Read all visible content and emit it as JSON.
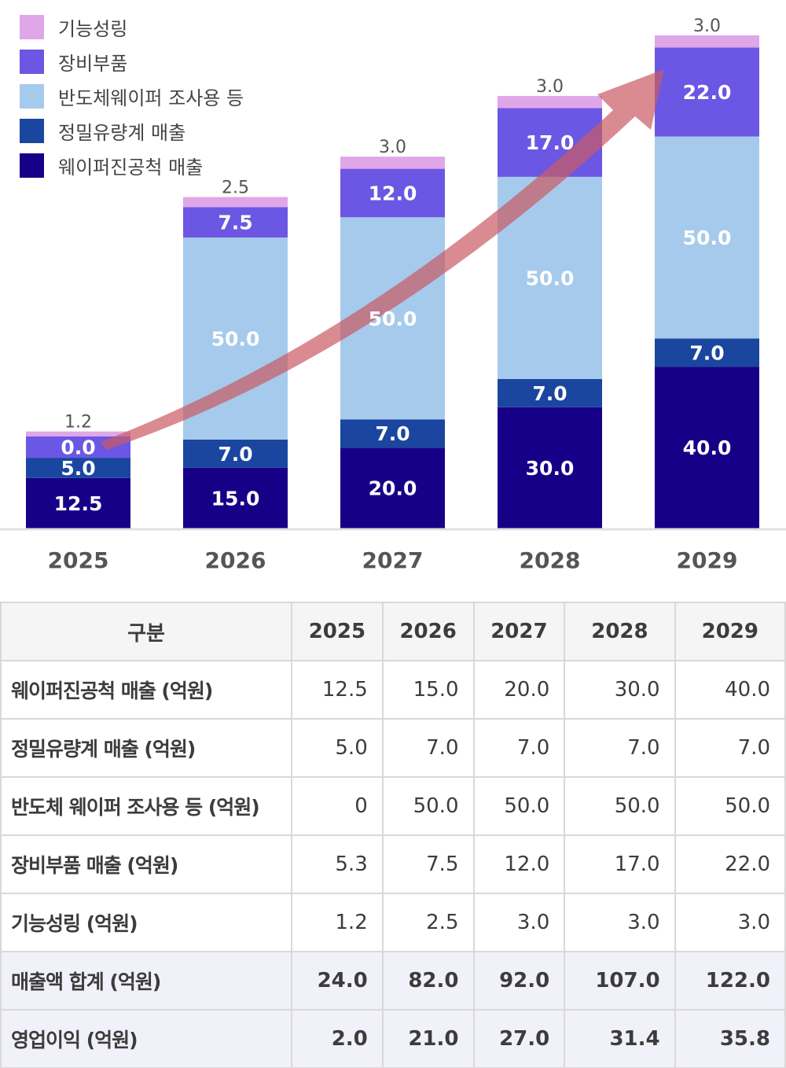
{
  "chart_data": {
    "type": "bar",
    "stacked": true,
    "categories": [
      "2025",
      "2026",
      "2027",
      "2028",
      "2029"
    ],
    "series": [
      {
        "name": "웨이퍼진공척 매출",
        "color": "#160087",
        "label_color": "#ffffff",
        "values": [
          12.5,
          15.0,
          20.0,
          30.0,
          40.0
        ],
        "labels": [
          "12.5",
          "15.0",
          "20.0",
          "30.0",
          "40.0"
        ]
      },
      {
        "name": "정밀유량계 매출",
        "color": "#1a46a0",
        "label_color": "#ffffff",
        "values": [
          5.0,
          7.0,
          7.0,
          7.0,
          7.0
        ],
        "labels": [
          "5.0",
          "7.0",
          "7.0",
          "7.0",
          "7.0"
        ]
      },
      {
        "name": "반도체웨이퍼 조사용 등",
        "color": "#a6caeb",
        "label_color": "#ffffff",
        "values": [
          0,
          50.0,
          50.0,
          50.0,
          50.0
        ],
        "labels": [
          "0.0",
          "50.0",
          "50.0",
          "50.0",
          "50.0"
        ]
      },
      {
        "name": "장비부품",
        "color": "#6b57e3",
        "label_color": "#ffffff",
        "values": [
          5.3,
          7.5,
          12.0,
          17.0,
          22.0
        ],
        "labels": [
          "",
          "7.5",
          "12.0",
          "17.0",
          "22.0"
        ]
      },
      {
        "name": "기능성링",
        "color": "#dfa6e8",
        "label_color": "#555555",
        "values": [
          1.2,
          2.5,
          3.0,
          3.0,
          3.0
        ],
        "labels": [
          "1.2",
          "2.5",
          "3.0",
          "3.0",
          "3.0"
        ]
      }
    ],
    "legend": "top-left",
    "legend_order": [
      "기능성링",
      "장비부품",
      "반도체웨이퍼 조사용 등",
      "정밀유량계 매출",
      "웨이퍼진공척 매출"
    ],
    "ylim": [
      0,
      122
    ],
    "grid": false,
    "annotations": [
      "upward trend arrow"
    ]
  },
  "table": {
    "headers": [
      "구분",
      "2025",
      "2026",
      "2027",
      "2028",
      "2029"
    ],
    "rows": [
      {
        "label": "웨이퍼진공척 매출 (억원)",
        "values": [
          "12.5",
          "15.0",
          "20.0",
          "30.0",
          "40.0"
        ],
        "highlight": false
      },
      {
        "label": "정밀유량계 매출 (억원)",
        "values": [
          "5.0",
          "7.0",
          "7.0",
          "7.0",
          "7.0"
        ],
        "highlight": false
      },
      {
        "label": "반도체 웨이퍼 조사용 등 (억원)",
        "values": [
          "0",
          "50.0",
          "50.0",
          "50.0",
          "50.0"
        ],
        "highlight": false
      },
      {
        "label": "장비부품 매출 (억원)",
        "values": [
          "5.3",
          "7.5",
          "12.0",
          "17.0",
          "22.0"
        ],
        "highlight": false
      },
      {
        "label": "기능성링 (억원)",
        "values": [
          "1.2",
          "2.5",
          "3.0",
          "3.0",
          "3.0"
        ],
        "highlight": false
      },
      {
        "label": "매출액 합계 (억원)",
        "values": [
          "24.0",
          "82.0",
          "92.0",
          "107.0",
          "122.0"
        ],
        "highlight": true
      },
      {
        "label": "영업이익 (억원)",
        "values": [
          "2.0",
          "21.0",
          "27.0",
          "31.4",
          "35.8"
        ],
        "highlight": true
      }
    ]
  }
}
